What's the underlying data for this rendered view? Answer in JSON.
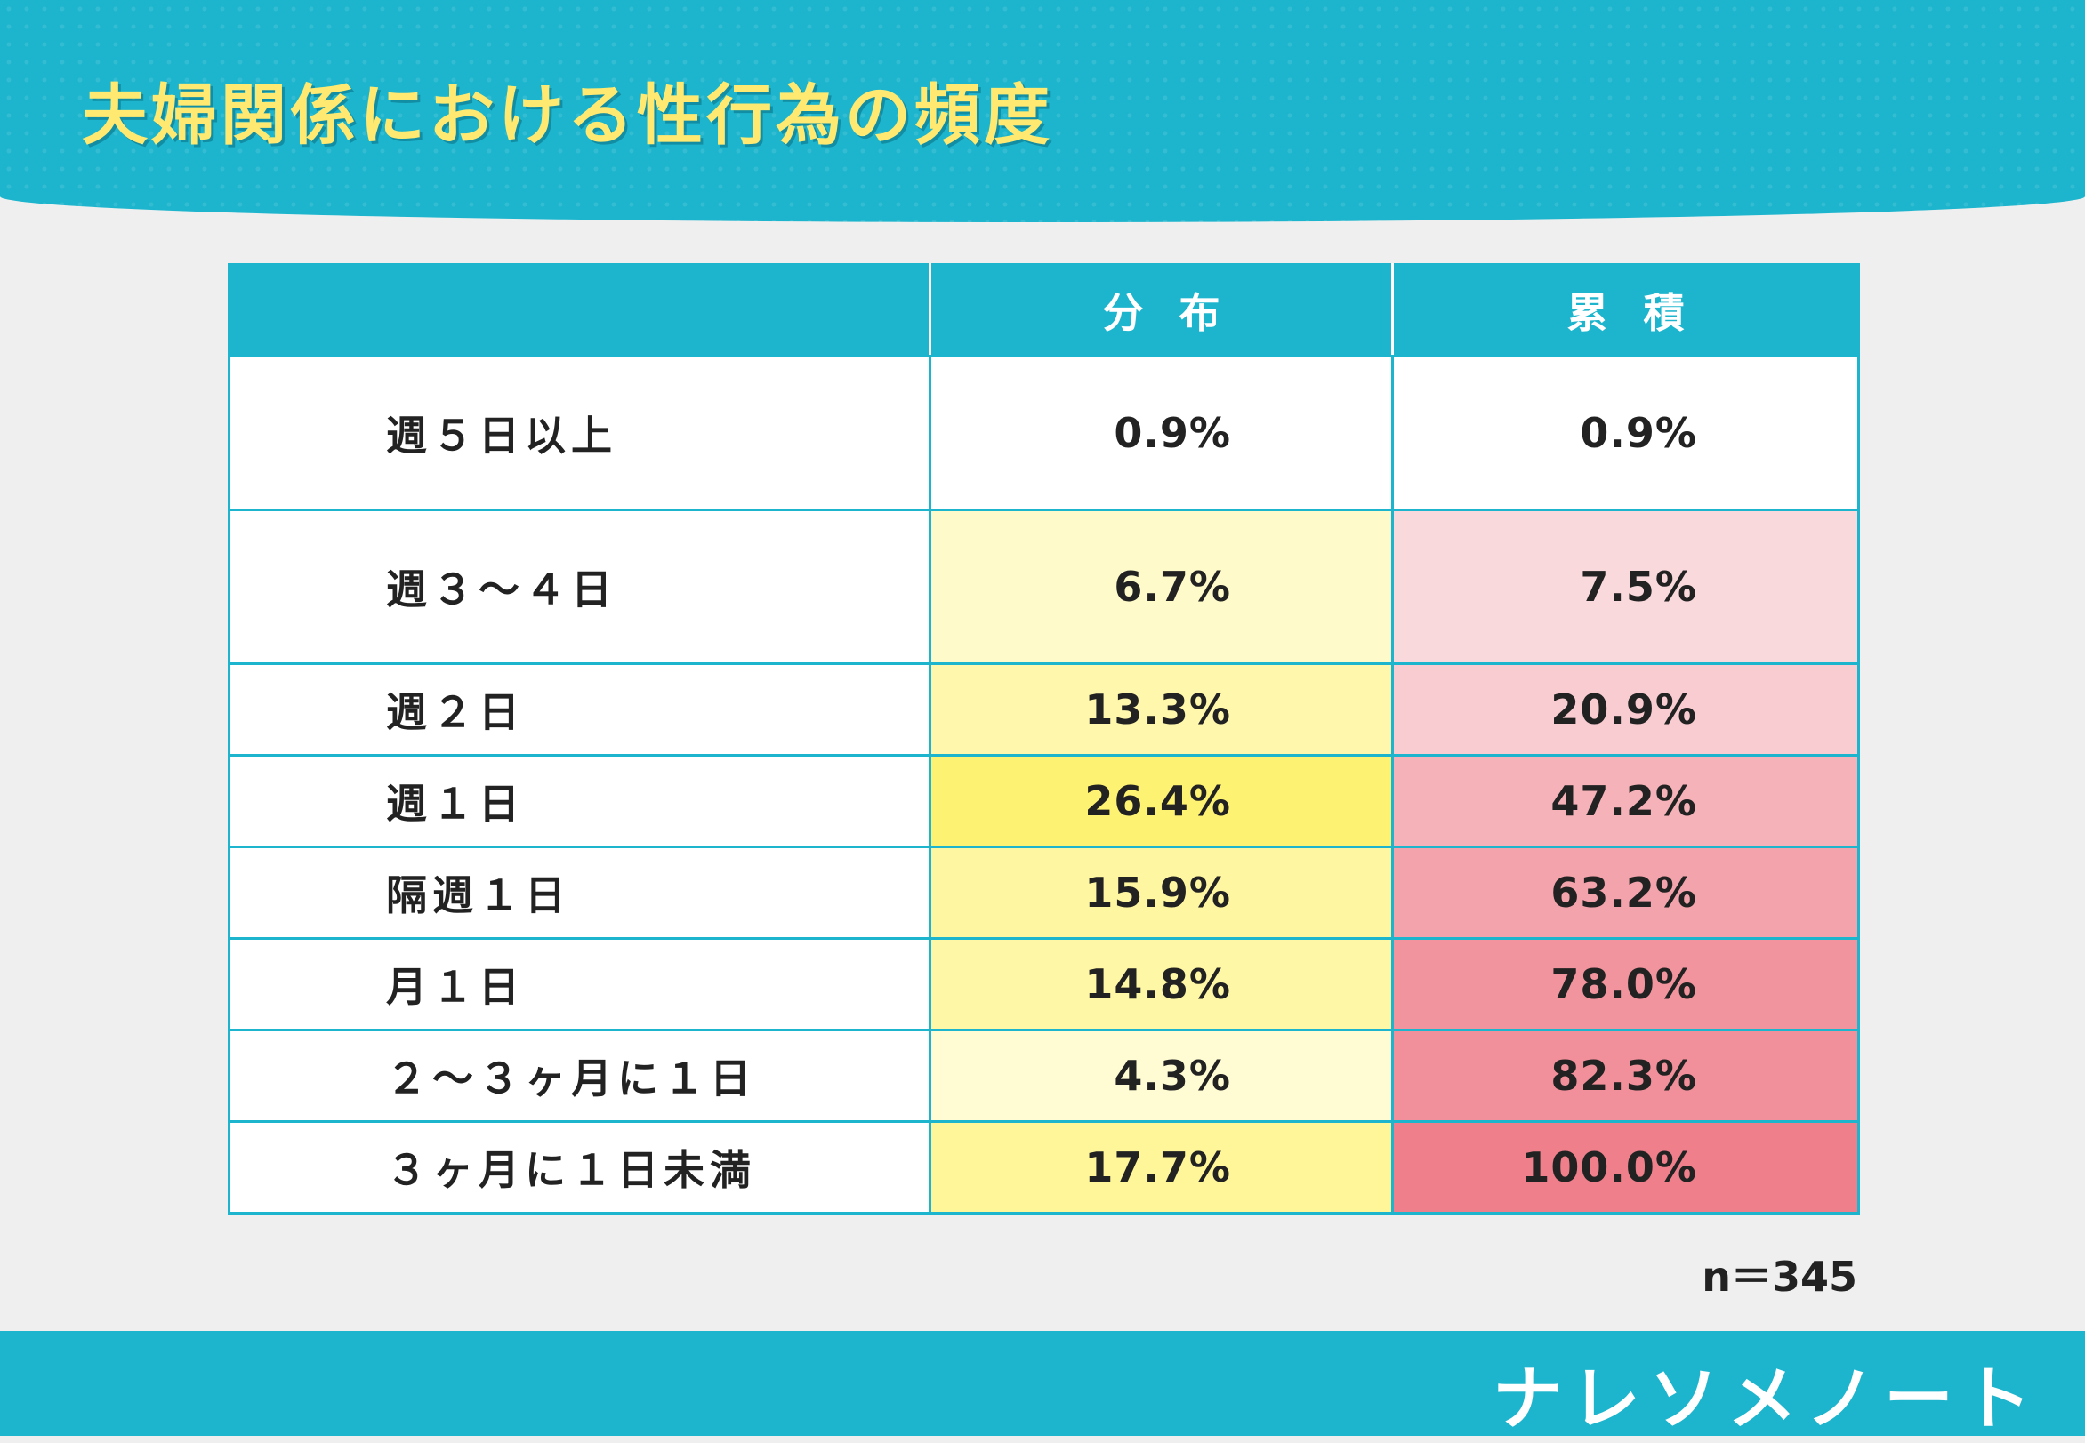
{
  "title": "夫婦関係における性行為の頻度",
  "chart_data": {
    "type": "table",
    "headers": [
      "",
      "分布",
      "累積"
    ],
    "rows": [
      {
        "label": "週５日以上",
        "dist": "0.9%",
        "cum": "0.9%",
        "dist_value": 0.9,
        "cum_value": 0.9
      },
      {
        "label": "週３～４日",
        "dist": "6.7%",
        "cum": "7.5%",
        "dist_value": 6.7,
        "cum_value": 7.5
      },
      {
        "label": "週２日",
        "dist": "13.3%",
        "cum": "20.9%",
        "dist_value": 13.3,
        "cum_value": 20.9
      },
      {
        "label": "週１日",
        "dist": "26.4%",
        "cum": "47.2%",
        "dist_value": 26.4,
        "cum_value": 47.2
      },
      {
        "label": "隔週１日",
        "dist": "15.9%",
        "cum": "63.2%",
        "dist_value": 15.9,
        "cum_value": 63.2
      },
      {
        "label": "月１日",
        "dist": "14.8%",
        "cum": "78.0%",
        "dist_value": 14.8,
        "cum_value": 78.0
      },
      {
        "label": "２～３ヶ月に１日",
        "dist": "4.3%",
        "cum": "82.3%",
        "dist_value": 4.3,
        "cum_value": 82.3
      },
      {
        "label": "３ヶ月に１日未満",
        "dist": "17.7%",
        "cum": "100.0%",
        "dist_value": 17.7,
        "cum_value": 100.0
      }
    ],
    "note": "n＝345"
  },
  "colors": {
    "header": "#1db5cd",
    "title_text": "#ffe970",
    "dist_heat_low": "#fffde6",
    "dist_heat_high": "#fdf272",
    "cum_heat_low": "#fbe0e3",
    "cum_heat_high": "#ef7f8a"
  },
  "logo": "ナレソメノート"
}
